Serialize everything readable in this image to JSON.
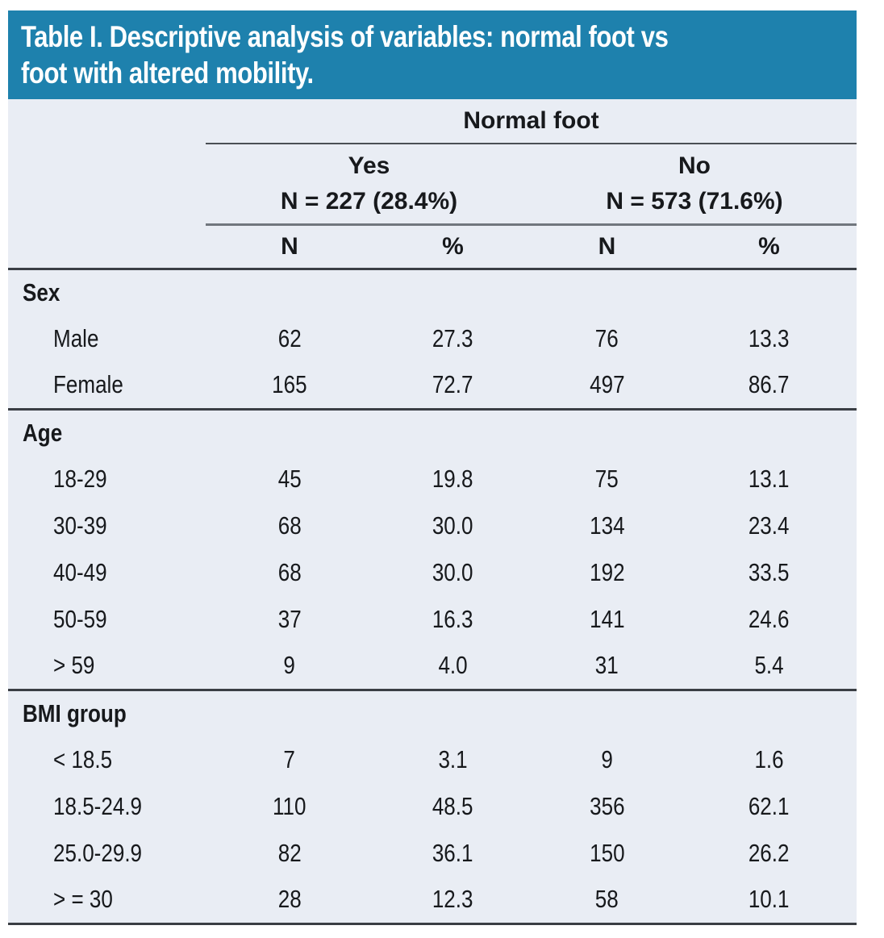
{
  "title": "Table I. Descriptive analysis of variables: normal foot vs\nfoot with altered mobility.",
  "colors": {
    "header_bg": "#1e81ad",
    "body_bg": "#e9edf4",
    "text": "#17191c",
    "title_text": "#ffffff",
    "rule_dark": "#3a3e44",
    "rule_gray": "#71777e",
    "rule_thin": "#4a4f54"
  },
  "header": {
    "group_label": "Normal foot",
    "subgroups": [
      {
        "label": "Yes",
        "n_label": "N = 227 (28.4%)"
      },
      {
        "label": "No",
        "n_label": "N = 573 (71.6%)"
      }
    ],
    "columns": [
      "N",
      "%",
      "N",
      "%"
    ]
  },
  "sections": [
    {
      "label": "Sex",
      "rows": [
        {
          "label": "Male",
          "values": [
            "62",
            "27.3",
            "76",
            "13.3"
          ]
        },
        {
          "label": "Female",
          "values": [
            "165",
            "72.7",
            "497",
            "86.7"
          ]
        }
      ]
    },
    {
      "label": "Age",
      "rows": [
        {
          "label": "18-29",
          "values": [
            "45",
            "19.8",
            "75",
            "13.1"
          ]
        },
        {
          "label": "30-39",
          "values": [
            "68",
            "30.0",
            "134",
            "23.4"
          ]
        },
        {
          "label": "40-49",
          "values": [
            "68",
            "30.0",
            "192",
            "33.5"
          ]
        },
        {
          "label": "50-59",
          "values": [
            "37",
            "16.3",
            "141",
            "24.6"
          ]
        },
        {
          "label": "> 59",
          "values": [
            "9",
            "4.0",
            "31",
            "5.4"
          ]
        }
      ]
    },
    {
      "label": "BMI group",
      "rows": [
        {
          "label": "< 18.5",
          "values": [
            "7",
            "3.1",
            "9",
            "1.6"
          ]
        },
        {
          "label": "18.5-24.9",
          "values": [
            "110",
            "48.5",
            "356",
            "62.1"
          ]
        },
        {
          "label": "25.0-29.9",
          "values": [
            "82",
            "36.1",
            "150",
            "26.2"
          ]
        },
        {
          "label": "> = 30",
          "values": [
            "28",
            "12.3",
            "58",
            "10.1"
          ]
        }
      ]
    }
  ]
}
